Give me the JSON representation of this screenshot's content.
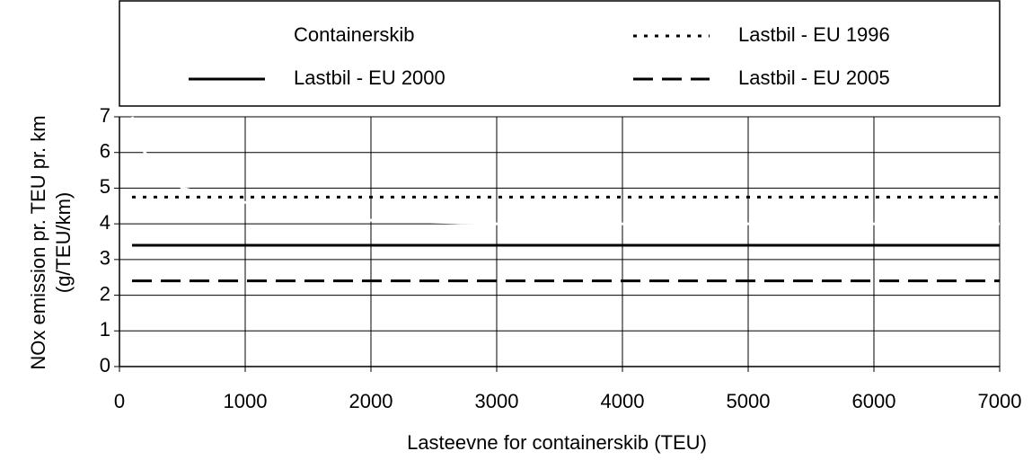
{
  "chart_data": {
    "type": "line",
    "xlabel": "Lasteevne for containerskib (TEU)",
    "ylabel": [
      "NOx emission pr. TEU pr. km",
      "(g/TEU/km)"
    ],
    "xlim": [
      0,
      7000
    ],
    "xticks": [
      0,
      1000,
      2000,
      3000,
      4000,
      5000,
      6000,
      7000
    ],
    "ylim": [
      0,
      7
    ],
    "yticks": [
      0,
      1,
      2,
      3,
      4,
      5,
      6,
      7
    ],
    "grid": true,
    "series": [
      {
        "name": "Containerskib",
        "color": "#ffffff",
        "dash": "solid",
        "x": [
          100,
          200,
          500,
          1000,
          2000,
          3000,
          4000,
          5000,
          6000,
          7000
        ],
        "values": [
          7,
          6,
          5,
          4.6,
          4.1,
          4.0,
          4.0,
          4.0,
          4.0,
          4.0
        ]
      },
      {
        "name": "Lastbil - EU 1996",
        "color": "#000000",
        "dash": "dotted",
        "x": [
          100,
          7000
        ],
        "values": [
          4.75,
          4.75
        ]
      },
      {
        "name": "Lastbil - EU 2000",
        "color": "#000000",
        "dash": "solid",
        "x": [
          100,
          7000
        ],
        "values": [
          3.4,
          3.4
        ]
      },
      {
        "name": "Lastbil - EU 2005",
        "color": "#000000",
        "dash": "dashed",
        "x": [
          100,
          7000
        ],
        "values": [
          2.4,
          2.4
        ]
      }
    ]
  }
}
